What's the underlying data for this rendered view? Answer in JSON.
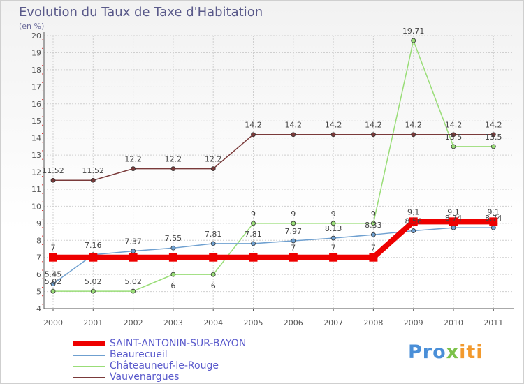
{
  "chart_data": {
    "type": "line",
    "title": "Evolution du Taux de Taxe d'Habitation",
    "subtitle": "(en %)",
    "x": [
      "2000",
      "2001",
      "2002",
      "2003",
      "2004",
      "2005",
      "2006",
      "2007",
      "2008",
      "2009",
      "2010",
      "2011"
    ],
    "ylim": [
      4,
      20
    ],
    "yticks": [
      "4",
      "5",
      "6",
      "7",
      "8",
      "9",
      "10",
      "11",
      "12",
      "13",
      "14",
      "15",
      "16",
      "17",
      "18",
      "19",
      "20"
    ],
    "grid": true,
    "legend_position": "bottom-left",
    "series": [
      {
        "name": "SAINT-ANTONIN-SUR-BAYON",
        "color": "#ee0000",
        "values": [
          7,
          7,
          7,
          7,
          7,
          7,
          7,
          7,
          7,
          9.1,
          9.1,
          9.1
        ],
        "labels": [
          "7",
          "",
          "",
          "",
          "",
          "",
          "7",
          "7",
          "7",
          "9.1",
          "9.1",
          "9.1"
        ]
      },
      {
        "name": "Beaurecueil",
        "color": "#6fa0d0",
        "values": [
          5.45,
          7.16,
          7.37,
          7.55,
          7.81,
          7.81,
          7.97,
          8.13,
          8.33,
          8.56,
          8.74,
          8.74
        ],
        "labels": [
          "5.45",
          "7.16",
          "7.37",
          "7.55",
          "7.81",
          "7.81",
          "7.97",
          "8.13",
          "8.33",
          "8.56",
          "8.74",
          "8.74"
        ]
      },
      {
        "name": "Châteauneuf-le-Rouge",
        "color": "#99dd77",
        "values": [
          5.02,
          5.02,
          5.02,
          6,
          6,
          9,
          9,
          9,
          9,
          19.71,
          13.5,
          13.5
        ],
        "labels": [
          "5.02",
          "5.02",
          "5.02",
          "6",
          "6",
          "9",
          "9",
          "9",
          "9",
          "19.71",
          "13.5",
          "13.5"
        ]
      },
      {
        "name": "Vauvenargues",
        "color": "#7a3a3a",
        "values": [
          11.52,
          11.52,
          12.2,
          12.2,
          12.2,
          14.2,
          14.2,
          14.2,
          14.2,
          14.2,
          14.2,
          14.2
        ],
        "labels": [
          "11.52",
          "11.52",
          "12.2",
          "12.2",
          "12.2",
          "14.2",
          "14.2",
          "14.2",
          "14.2",
          "14.2",
          "14.2",
          "14.2"
        ]
      }
    ]
  },
  "logo": {
    "part1": "Pro",
    "part2": "x",
    "part3": "iti"
  }
}
